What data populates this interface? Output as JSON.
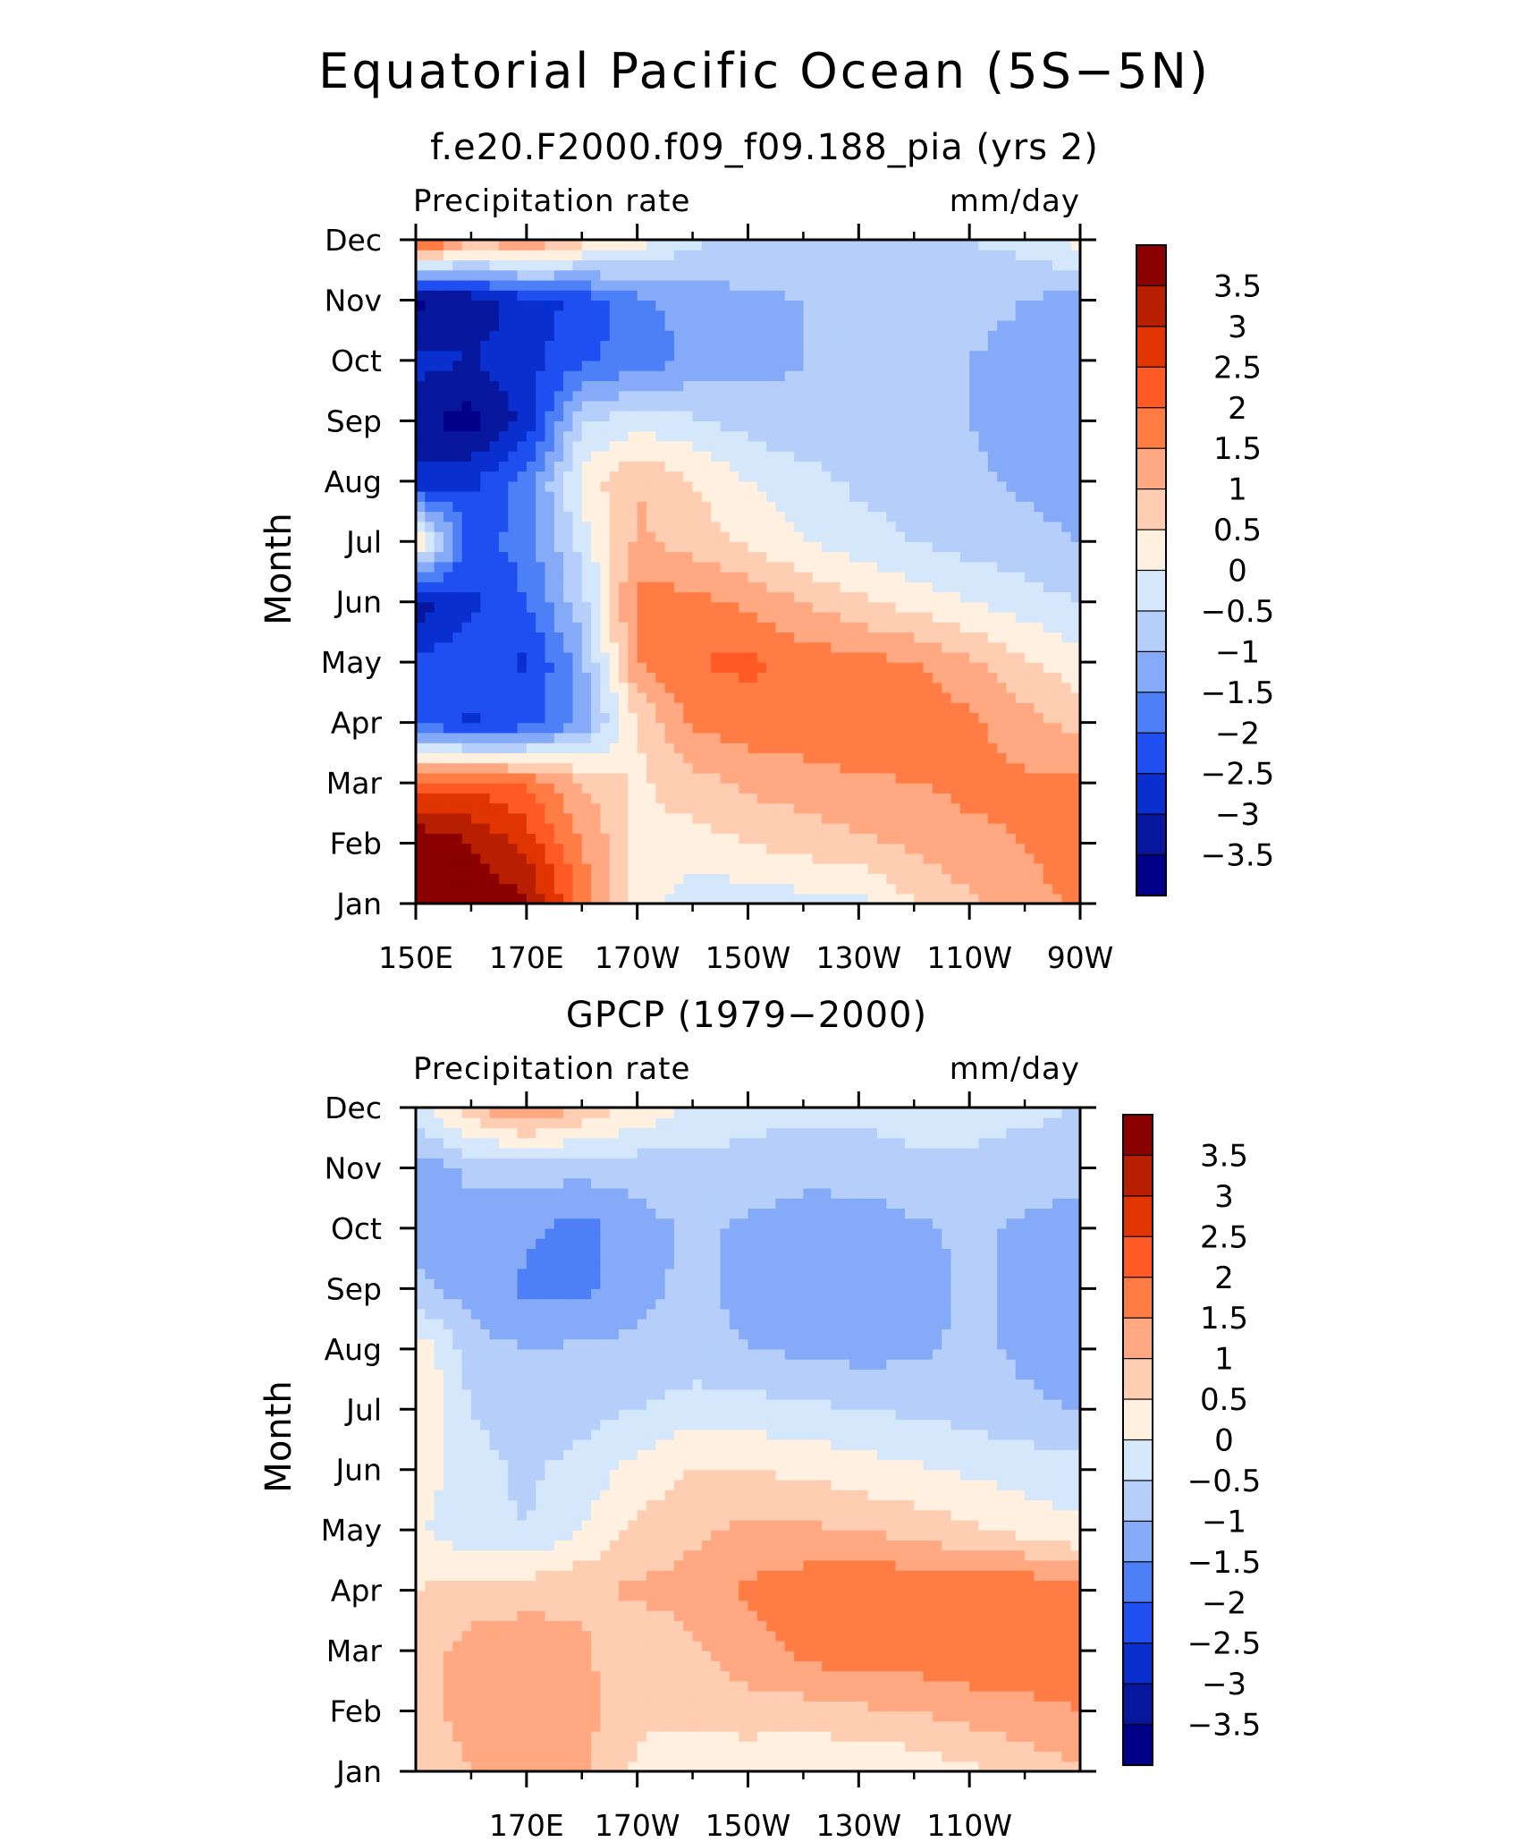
{
  "figure": {
    "title": "Equatorial Pacific Ocean (5S−5N)"
  },
  "colorbar": {
    "levels": [
      "3.5",
      "3",
      "2.5",
      "2",
      "1.5",
      "1",
      "0.5",
      "0",
      "−0.5",
      "−1",
      "−1.5",
      "−2",
      "−2.5",
      "−3",
      "−3.5"
    ],
    "colors": [
      "#8b0000",
      "#b81e00",
      "#e03500",
      "#ff5a24",
      "#ff7d44",
      "#ffa882",
      "#ffcdb2",
      "#fff0e0",
      "#d4e7fb",
      "#b5cffa",
      "#84aaf8",
      "#4d80f6",
      "#1f4ff0",
      "#0a2fcf",
      "#06169d",
      "#000088"
    ]
  },
  "chart_data": [
    {
      "type": "heatmap",
      "title": "f.e20.F2000.f09_f09.188_pia (yrs 2)",
      "left_label": "Precipitation rate",
      "right_label": "mm/day",
      "ylabel": "Month",
      "x_tick_labels": [
        "150E",
        "170E",
        "170W",
        "150W",
        "130W",
        "110W",
        "90W"
      ],
      "x_ticks": [
        150,
        170,
        190,
        210,
        230,
        250,
        270
      ],
      "xlim": [
        150,
        270
      ],
      "y_tick_labels": [
        "Jan",
        "Feb",
        "Mar",
        "Apr",
        "May",
        "Jun",
        "Jul",
        "Aug",
        "Sep",
        "Oct",
        "Nov",
        "Dec"
      ],
      "ylim": [
        1,
        12
      ],
      "x": [
        150,
        160,
        170,
        180,
        190,
        200,
        210,
        220,
        230,
        240,
        250,
        260,
        270
      ],
      "y": [
        1,
        2,
        3,
        4,
        5,
        6,
        7,
        8,
        9,
        10,
        11,
        12
      ],
      "z": [
        [
          4.0,
          4.0,
          3.6,
          1.8,
          0.2,
          -0.3,
          -0.3,
          -0.2,
          -0.2,
          0.5,
          0.9,
          1.3,
          1.6
        ],
        [
          4.0,
          3.5,
          2.8,
          1.5,
          0.4,
          0.3,
          0.5,
          0.7,
          0.9,
          1.1,
          1.4,
          1.5,
          1.8
        ],
        [
          2.2,
          2.4,
          2.0,
          1.0,
          0.4,
          0.8,
          1.1,
          1.3,
          1.4,
          1.5,
          1.6,
          1.6,
          1.6
        ],
        [
          -2.2,
          -2.6,
          -2.3,
          -1.4,
          0.5,
          1.6,
          1.8,
          1.8,
          1.9,
          1.9,
          1.6,
          1.2,
          0.8
        ],
        [
          -2.4,
          -2.1,
          -2.6,
          -1.2,
          1.5,
          2.0,
          2.1,
          1.8,
          1.7,
          1.5,
          1.1,
          0.6,
          0.2
        ],
        [
          -3.3,
          -2.6,
          -2.0,
          -0.7,
          1.7,
          1.7,
          1.4,
          1.0,
          0.6,
          0.3,
          0.0,
          -0.3,
          -0.5
        ],
        [
          0.6,
          -2.2,
          -1.8,
          -0.3,
          1.1,
          0.8,
          0.4,
          0.0,
          -0.3,
          -0.5,
          -0.7,
          -0.8,
          -1.0
        ],
        [
          -2.8,
          -2.6,
          -1.8,
          0.2,
          1.0,
          0.5,
          0.0,
          -0.3,
          -0.6,
          -0.7,
          -0.9,
          -1.1,
          -1.3
        ],
        [
          -3.4,
          -3.7,
          -2.8,
          -0.6,
          -0.2,
          -0.4,
          -0.7,
          -0.9,
          -0.8,
          -0.9,
          -1.0,
          -1.2,
          -1.5
        ],
        [
          -2.8,
          -3.0,
          -2.7,
          -2.1,
          -1.8,
          -1.4,
          -1.2,
          -1.0,
          -0.9,
          -0.9,
          -1.0,
          -1.1,
          -1.5
        ],
        [
          -3.6,
          -3.4,
          -2.7,
          -2.4,
          -1.6,
          -1.3,
          -1.1,
          -1.0,
          -0.9,
          -0.8,
          -0.9,
          -1.0,
          -1.2
        ],
        [
          2.6,
          1.2,
          1.6,
          0.8,
          0.2,
          -0.4,
          -0.6,
          -0.7,
          -0.7,
          -0.6,
          -0.5,
          -0.3,
          0.2
        ]
      ]
    },
    {
      "type": "heatmap",
      "title": "GPCP (1979−2000)",
      "left_label": "Precipitation rate",
      "right_label": "mm/day",
      "ylabel": "Month",
      "x_tick_labels": [
        "170E",
        "170W",
        "150W",
        "130W",
        "110W"
      ],
      "x_ticks": [
        170,
        190,
        210,
        230,
        250
      ],
      "xlim": [
        150,
        270
      ],
      "y_tick_labels": [
        "Jan",
        "Feb",
        "Mar",
        "Apr",
        "May",
        "Jun",
        "Jul",
        "Aug",
        "Sep",
        "Oct",
        "Nov",
        "Dec"
      ],
      "ylim": [
        1,
        12
      ],
      "x": [
        150,
        160,
        170,
        180,
        190,
        200,
        210,
        220,
        230,
        240,
        250,
        260,
        270
      ],
      "y": [
        1,
        2,
        3,
        4,
        5,
        6,
        7,
        8,
        9,
        10,
        11,
        12
      ],
      "z": [
        [
          0.8,
          1.0,
          1.2,
          1.1,
          0.4,
          0.2,
          0.1,
          0.0,
          0.0,
          0.2,
          0.4,
          0.7,
          0.9
        ],
        [
          0.9,
          1.1,
          1.4,
          1.2,
          0.6,
          0.6,
          0.8,
          0.8,
          0.9,
          1.0,
          1.2,
          1.3,
          1.5
        ],
        [
          0.8,
          1.2,
          1.3,
          1.1,
          0.6,
          0.9,
          1.3,
          1.6,
          1.9,
          1.8,
          1.9,
          2.0,
          1.8
        ],
        [
          0.5,
          0.7,
          0.8,
          0.9,
          1.1,
          1.2,
          1.6,
          1.8,
          2.0,
          1.9,
          1.8,
          2.0,
          1.6
        ],
        [
          0.1,
          -0.4,
          -0.5,
          0.0,
          0.6,
          0.9,
          1.1,
          1.1,
          1.0,
          0.8,
          0.6,
          0.3,
          0.1
        ],
        [
          0.3,
          -0.3,
          -0.6,
          -0.3,
          0.2,
          0.5,
          0.5,
          0.4,
          0.2,
          0.1,
          -0.1,
          -0.2,
          -0.3
        ],
        [
          0.6,
          -0.5,
          -0.8,
          -0.7,
          -0.5,
          -0.2,
          -0.3,
          -0.4,
          -0.5,
          -0.6,
          -0.7,
          -0.9,
          -1.0
        ],
        [
          0.4,
          -0.8,
          -1.0,
          -0.9,
          -0.9,
          -0.9,
          -1.0,
          -1.1,
          -1.2,
          -1.1,
          -0.9,
          -1.1,
          -1.4
        ],
        [
          -0.9,
          -1.2,
          -1.6,
          -1.7,
          -1.1,
          -0.9,
          -1.1,
          -1.2,
          -1.3,
          -1.2,
          -0.9,
          -1.1,
          -1.3
        ],
        [
          -1.1,
          -1.2,
          -1.4,
          -1.7,
          -1.2,
          -0.9,
          -1.1,
          -1.3,
          -1.4,
          -1.1,
          -0.9,
          -1.1,
          -1.3
        ],
        [
          -1.3,
          -0.9,
          -0.8,
          -0.8,
          -0.8,
          -0.7,
          -0.7,
          -0.8,
          -0.7,
          -0.6,
          -0.6,
          -0.7,
          -0.8
        ],
        [
          -0.2,
          0.9,
          1.6,
          0.9,
          0.4,
          -0.1,
          -0.3,
          -0.4,
          -0.4,
          -0.3,
          -0.3,
          -0.4,
          -0.5
        ]
      ]
    }
  ]
}
